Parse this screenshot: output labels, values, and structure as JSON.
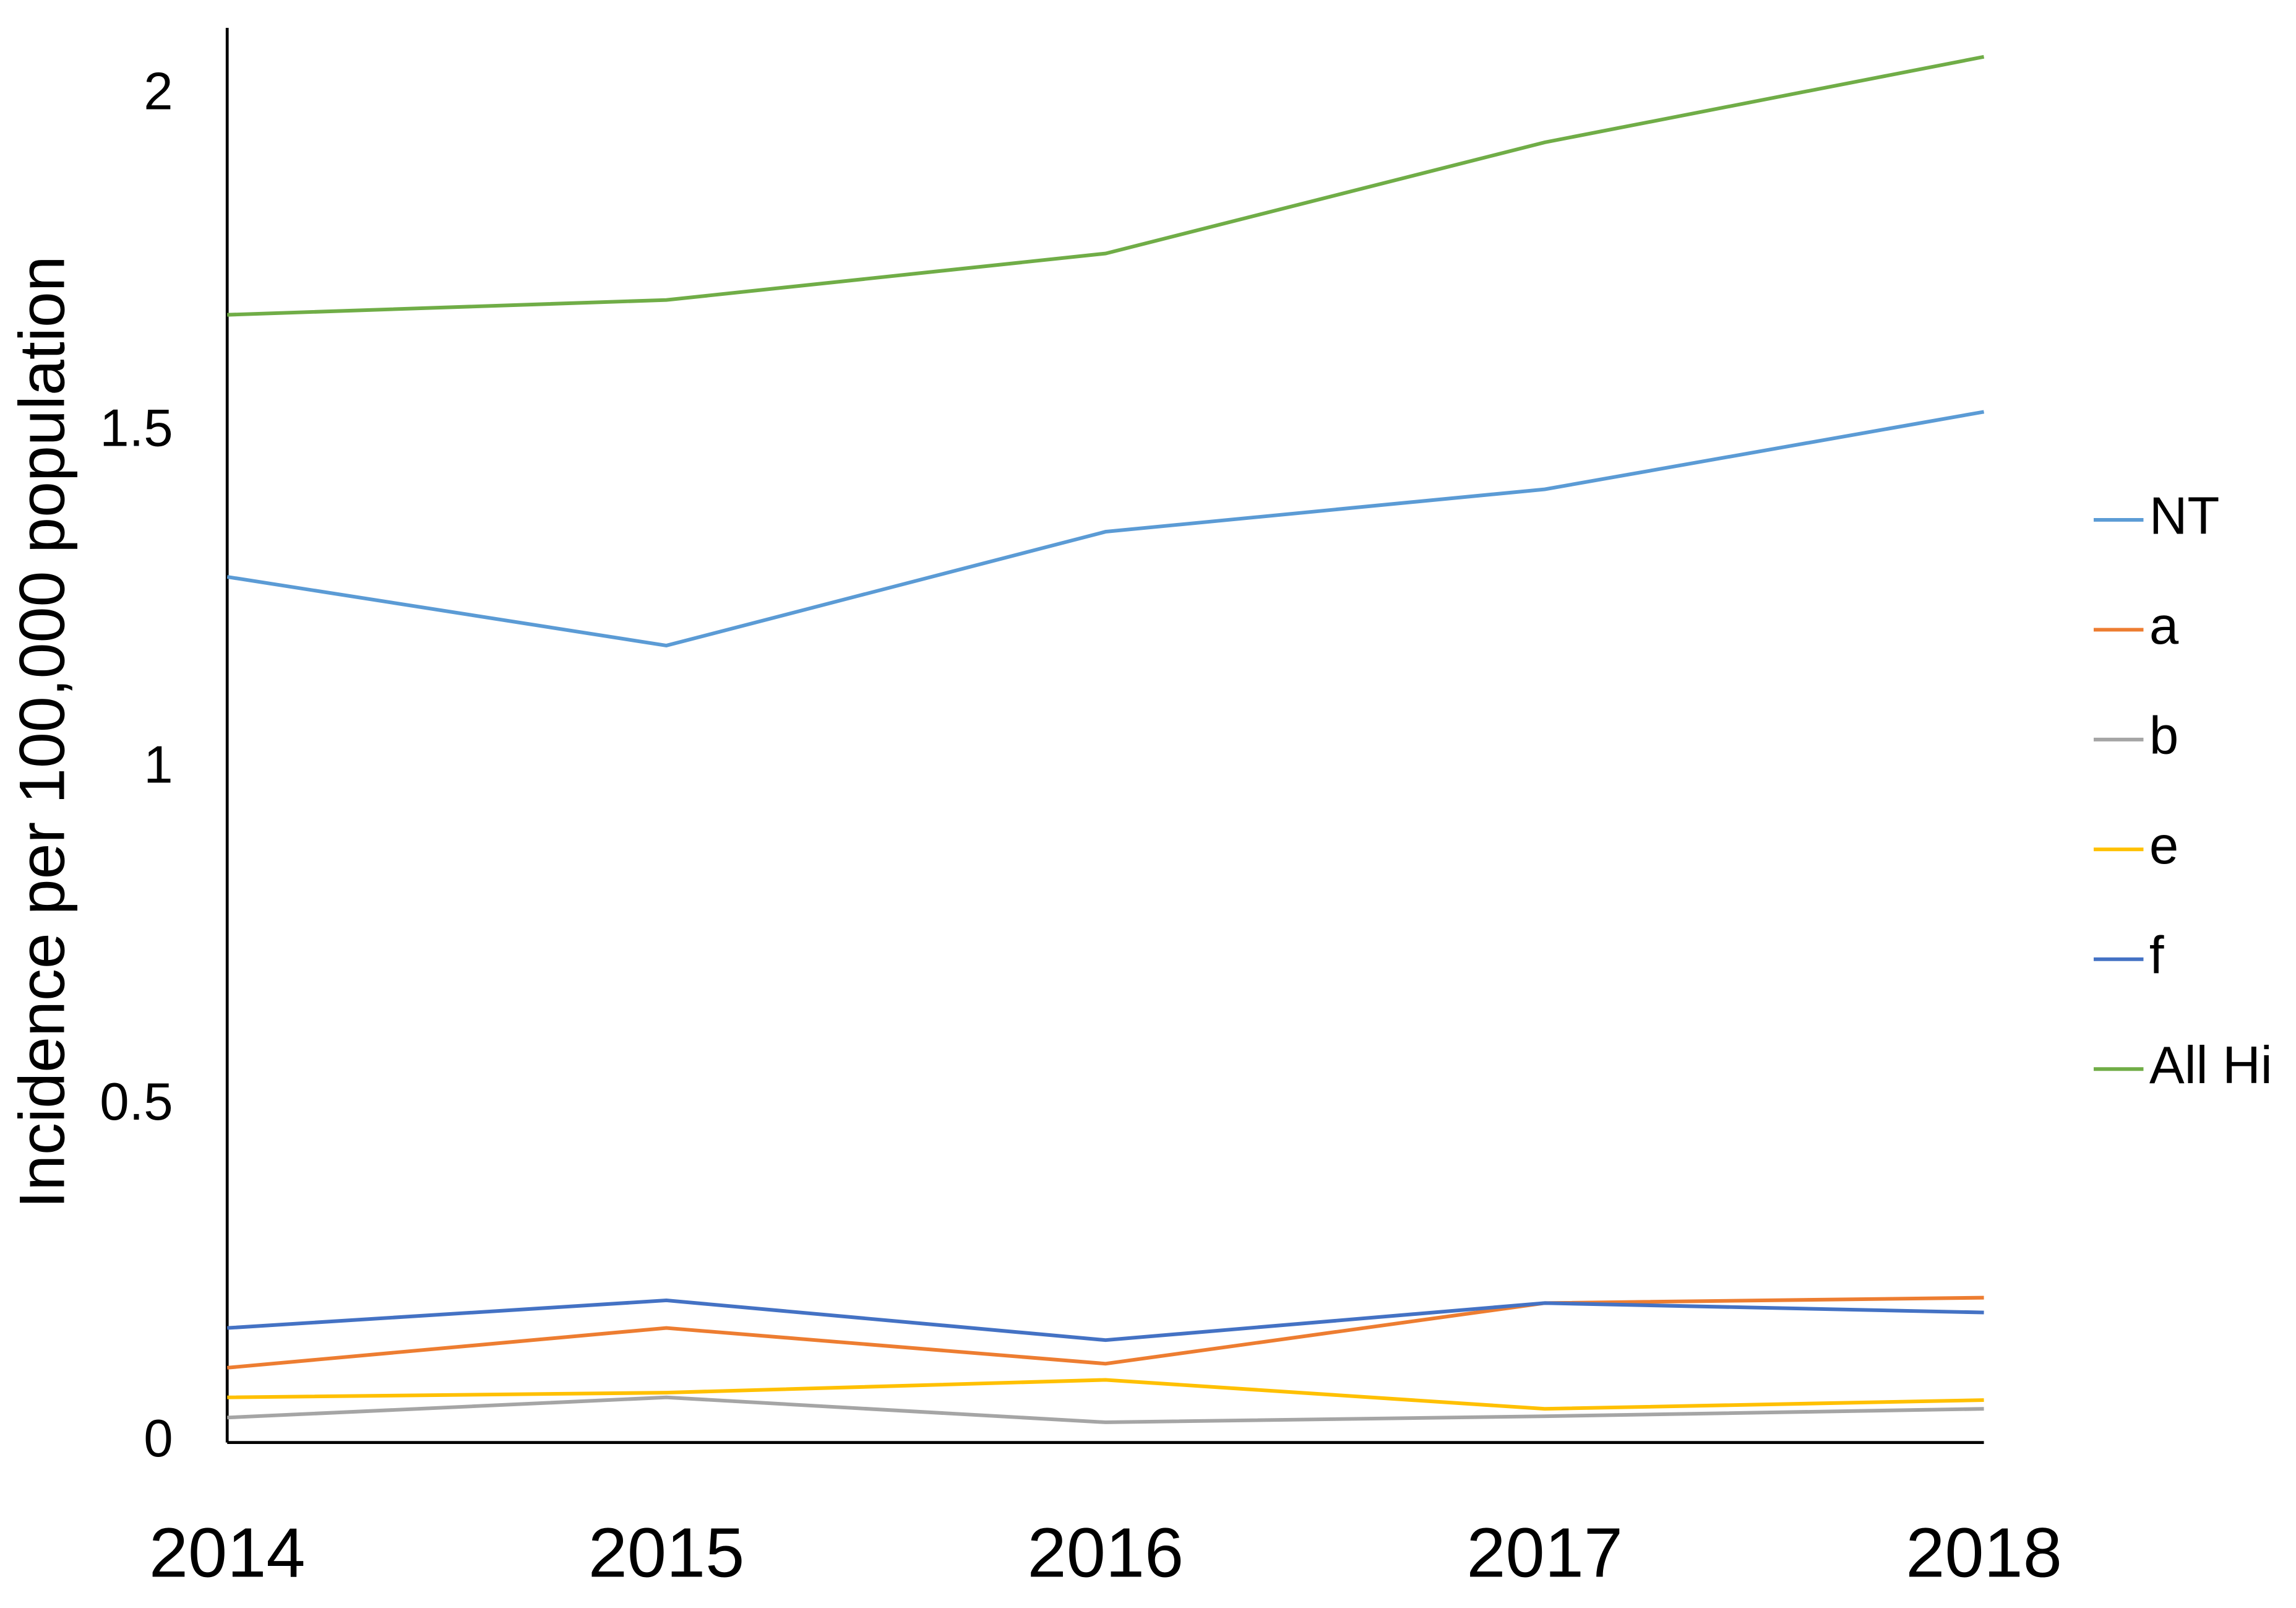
{
  "chart_data": {
    "type": "line",
    "y_label": "Incidence per 100,000 population",
    "x": [
      2014,
      2015,
      2016,
      2017,
      2018
    ],
    "xlim": [
      2014,
      2018
    ],
    "xticks": [
      2014,
      2015,
      2016,
      2017,
      2018
    ],
    "ylim": [
      0,
      2.1
    ],
    "yticks": [
      0,
      0.5,
      1,
      1.5,
      2
    ],
    "grid": false,
    "legend": "right",
    "series": [
      {
        "name": "NT",
        "color": "#5b9bd5",
        "values": [
          1.285,
          1.183,
          1.352,
          1.415,
          1.53
        ]
      },
      {
        "name": "a",
        "color": "#ed7d31",
        "values": [
          0.111,
          0.17,
          0.117,
          0.207,
          0.215
        ]
      },
      {
        "name": "b",
        "color": "#a5a5a5",
        "values": [
          0.037,
          0.067,
          0.03,
          0.039,
          0.05
        ]
      },
      {
        "name": "e",
        "color": "#ffc000",
        "values": [
          0.067,
          0.074,
          0.093,
          0.05,
          0.063
        ]
      },
      {
        "name": "f",
        "color": "#4472c4",
        "values": [
          0.17,
          0.211,
          0.152,
          0.207,
          0.193
        ]
      },
      {
        "name": "All Hi",
        "color": "#70ad47",
        "values": [
          1.674,
          1.696,
          1.765,
          1.93,
          2.057
        ]
      }
    ]
  }
}
